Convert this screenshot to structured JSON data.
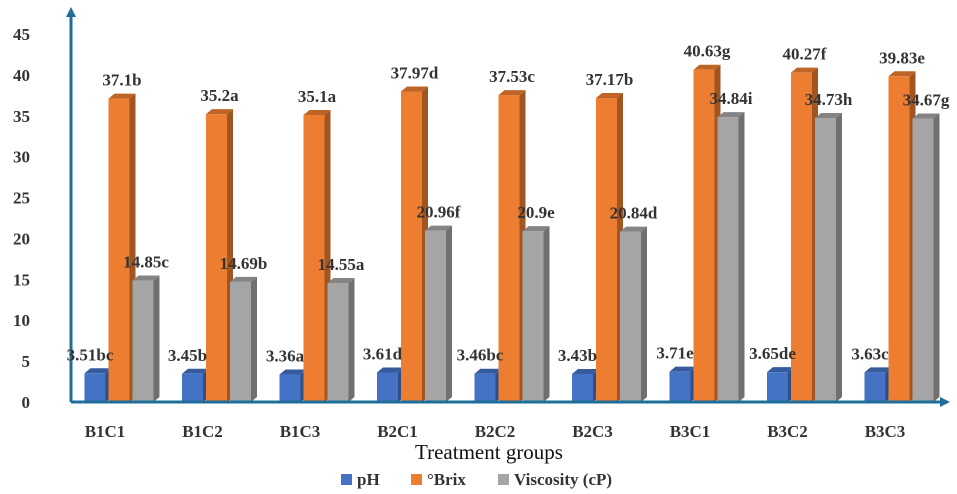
{
  "chart_data": {
    "type": "bar",
    "categories": [
      "B1C1",
      "B1C2",
      "B1C3",
      "B2C1",
      "B2C2",
      "B2C3",
      "B3C1",
      "B3C2",
      "B3C3"
    ],
    "series": [
      {
        "name": "pH",
        "color": "#4472C4",
        "values": [
          3.51,
          3.45,
          3.36,
          3.61,
          3.46,
          3.43,
          3.71,
          3.65,
          3.63
        ],
        "labels": [
          "3.51bc",
          "3.45b",
          "3.36a",
          "3.61d",
          "3.46bc",
          "3.43b",
          "3.71e",
          "3.65de",
          "3.63c"
        ]
      },
      {
        "name": "°Brix",
        "color": "#ED7D31",
        "values": [
          37.1,
          35.2,
          35.1,
          37.97,
          37.53,
          37.17,
          40.63,
          40.27,
          39.83
        ],
        "labels": [
          "37.1b",
          "35.2a",
          "35.1a",
          "37.97d",
          "37.53c",
          "37.17b",
          "40.63g",
          "40.27f",
          "39.83e"
        ]
      },
      {
        "name": "Viscosity (cP)",
        "color": "#A5A5A5",
        "values": [
          14.85,
          14.69,
          14.55,
          20.96,
          20.9,
          20.84,
          34.84,
          34.73,
          34.67
        ],
        "labels": [
          "14.85c",
          "14.69b",
          "14.55a",
          "20.96f",
          "20.9e",
          "20.84d",
          "34.84i",
          "34.73h",
          "34.67g"
        ]
      }
    ],
    "y_ticks": [
      "0",
      "5",
      "10",
      "15",
      "20",
      "25",
      "30",
      "35",
      "40",
      "45"
    ],
    "ylim": [
      0,
      45
    ],
    "xlabel": "Treatment groups",
    "ylabel": "",
    "axis_color": "#1F6E99",
    "legend_position": "bottom",
    "grid": false,
    "style": "3d-column"
  }
}
